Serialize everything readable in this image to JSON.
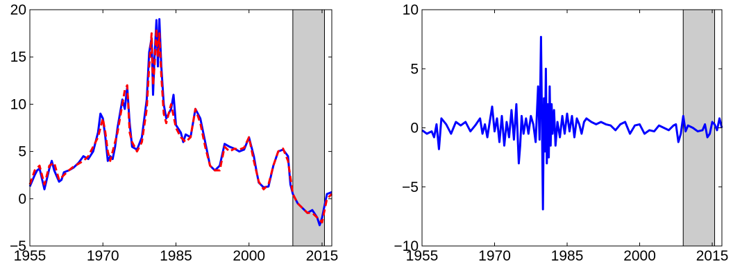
{
  "chart_data": [
    {
      "type": "line",
      "title": "",
      "xlabel": "",
      "ylabel": "",
      "xlim": [
        1955,
        2017
      ],
      "ylim": [
        -5,
        20
      ],
      "x_ticks": [
        "1955",
        "1970",
        "1985",
        "2000",
        "2015"
      ],
      "y_ticks": [
        "−5",
        "0",
        "5",
        "10",
        "15",
        "20"
      ],
      "grid": false,
      "shaded_region": {
        "x_start": 2009,
        "x_end": 2015.5,
        "color": "#cccccc"
      },
      "colors": {
        "series_1": "#0000ff",
        "series_2": "#ff0000"
      },
      "series": [
        {
          "style": "solid",
          "x": [
            1955,
            1956,
            1956.5,
            1957,
            1958,
            1959,
            1959.5,
            1960,
            1961,
            1961.5,
            1962,
            1963,
            1964,
            1965,
            1966,
            1967,
            1968,
            1969,
            1969.5,
            1970,
            1970.5,
            1971,
            1971.5,
            1972,
            1972.5,
            1973,
            1974,
            1974.5,
            1975,
            1975.5,
            1976,
            1977,
            1978,
            1979,
            1979.5,
            1980,
            1980.3,
            1980.6,
            1981,
            1981.3,
            1981.6,
            1982,
            1982.5,
            1983,
            1984,
            1984.5,
            1985,
            1986,
            1986.5,
            1987,
            1988,
            1989,
            1990,
            1991,
            1992,
            1993,
            1994,
            1995,
            1996,
            1997,
            1998,
            1999,
            2000,
            2001,
            2001.5,
            2002,
            2003,
            2004,
            2005,
            2006,
            2007,
            2008,
            2008.5,
            2009,
            2010,
            2011,
            2012,
            2013,
            2014,
            2014.5,
            2015,
            2016,
            2017
          ],
          "y": [
            1.3,
            2.5,
            3.0,
            3.2,
            1.0,
            3.2,
            4.0,
            3.0,
            1.8,
            2.0,
            2.8,
            3.0,
            3.3,
            3.8,
            4.5,
            4.2,
            5.0,
            7.0,
            9.0,
            8.5,
            6.5,
            4.0,
            4.5,
            4.2,
            5.5,
            7.5,
            10.5,
            9.5,
            11.8,
            8.0,
            5.5,
            5.2,
            6.5,
            10.5,
            15.5,
            17.0,
            11.0,
            15.0,
            18.9,
            14.0,
            19.0,
            14.0,
            10.0,
            8.5,
            9.5,
            11.0,
            7.8,
            7.0,
            6.0,
            6.8,
            6.5,
            9.5,
            8.5,
            6.0,
            3.5,
            3.0,
            3.5,
            5.8,
            5.5,
            5.3,
            5.0,
            5.2,
            6.5,
            4.5,
            3.0,
            1.7,
            1.2,
            1.3,
            3.5,
            5.0,
            5.2,
            4.5,
            1.5,
            0.5,
            -0.5,
            -1.0,
            -1.5,
            -1.2,
            -2.0,
            -2.8,
            -2.0,
            0.5,
            0.7
          ]
        },
        {
          "style": "dashed",
          "x": [
            1955,
            1956,
            1957,
            1958,
            1959,
            1960,
            1961,
            1962,
            1963,
            1964,
            1965,
            1966,
            1967,
            1968,
            1969,
            1970,
            1970.5,
            1971,
            1971.5,
            1972,
            1973,
            1974,
            1974.5,
            1975,
            1975.5,
            1976,
            1977,
            1978,
            1979,
            1979.5,
            1980,
            1980.3,
            1980.6,
            1981,
            1981.3,
            1981.6,
            1982,
            1982.5,
            1983,
            1984,
            1985,
            1986,
            1987,
            1988,
            1989,
            1990,
            1991,
            1992,
            1993,
            1994,
            1995,
            1996,
            1997,
            1998,
            1999,
            2000,
            2001,
            2002,
            2003,
            2004,
            2005,
            2006,
            2007,
            2008,
            2009,
            2010,
            2011,
            2012,
            2013,
            2014,
            2015,
            2016,
            2017
          ],
          "y": [
            1.5,
            3.0,
            3.5,
            1.5,
            3.5,
            3.8,
            2.0,
            2.5,
            3.0,
            3.4,
            3.7,
            4.0,
            4.5,
            5.5,
            6.5,
            8.5,
            7.0,
            5.0,
            4.0,
            5.0,
            7.0,
            10.0,
            11.5,
            12.0,
            7.0,
            6.0,
            5.0,
            6.0,
            9.5,
            14.0,
            17.5,
            12.0,
            14.0,
            18.0,
            15.0,
            17.5,
            13.0,
            9.0,
            8.0,
            10.0,
            7.5,
            6.5,
            6.0,
            6.5,
            9.5,
            8.0,
            5.5,
            3.5,
            3.0,
            3.0,
            5.5,
            5.0,
            5.3,
            5.2,
            5.4,
            6.5,
            4.0,
            1.8,
            1.0,
            1.5,
            3.5,
            5.0,
            5.3,
            4.0,
            0.5,
            -0.5,
            -1.0,
            -1.5,
            -1.5,
            -2.0,
            -2.5,
            0.0,
            0.5
          ]
        }
      ]
    },
    {
      "type": "line",
      "title": "",
      "xlabel": "",
      "ylabel": "",
      "xlim": [
        1955,
        2017
      ],
      "ylim": [
        -10,
        10
      ],
      "x_ticks": [
        "1955",
        "1970",
        "1985",
        "2000",
        "2015"
      ],
      "y_ticks": [
        "−10",
        "−5",
        "0",
        "5",
        "10"
      ],
      "grid": false,
      "shaded_region": {
        "x_start": 2009,
        "x_end": 2015.5,
        "color": "#cccccc"
      },
      "colors": {
        "series_1": "#0000ff"
      },
      "series": [
        {
          "style": "solid",
          "x": [
            1955,
            1956,
            1957,
            1957.5,
            1958,
            1958.5,
            1959,
            1960,
            1961,
            1962,
            1963,
            1964,
            1965,
            1966,
            1967,
            1967.5,
            1968,
            1968.5,
            1969,
            1969.5,
            1970,
            1970.5,
            1971,
            1971.5,
            1972,
            1972.5,
            1973,
            1973.5,
            1974,
            1974.5,
            1975,
            1975.3,
            1975.6,
            1976,
            1976.5,
            1977,
            1977.5,
            1978,
            1978.5,
            1979,
            1979.3,
            1979.6,
            1980,
            1980.2,
            1980.4,
            1980.6,
            1980.8,
            1981,
            1981.2,
            1981.4,
            1981.6,
            1981.8,
            1982,
            1982.3,
            1982.6,
            1983,
            1983.5,
            1984,
            1984.5,
            1985,
            1985.5,
            1986,
            1986.5,
            1987,
            1987.5,
            1988,
            1988.5,
            1989,
            1990,
            1991,
            1992,
            1993,
            1994,
            1995,
            1996,
            1997,
            1998,
            1999,
            2000,
            2001,
            2002,
            2003,
            2004,
            2005,
            2006,
            2007,
            2007.5,
            2008,
            2008.5,
            2009,
            2009.5,
            2010,
            2011,
            2012,
            2013,
            2013.5,
            2014,
            2014.5,
            2015,
            2015.5,
            2016,
            2016.5,
            2017
          ],
          "y": [
            -0.2,
            -0.5,
            -0.3,
            -0.8,
            0.3,
            -1.8,
            0.8,
            0.3,
            -0.5,
            0.5,
            0.2,
            0.5,
            -0.3,
            0.2,
            0.8,
            -0.5,
            0.3,
            -0.8,
            0.5,
            1.8,
            -0.3,
            0.8,
            -1.2,
            1.0,
            -1.5,
            0.5,
            -0.8,
            1.5,
            -1.0,
            2.0,
            -3.0,
            -1.5,
            1.0,
            -0.5,
            0.8,
            -0.5,
            1.0,
            0.3,
            -1.2,
            3.5,
            -1.0,
            7.7,
            -6.9,
            2.5,
            -2.0,
            5.0,
            -3.0,
            2.0,
            -2.5,
            3.5,
            -1.5,
            2.0,
            -0.5,
            1.5,
            -1.5,
            0.5,
            -0.8,
            1.0,
            -0.5,
            1.2,
            -0.3,
            1.0,
            -0.8,
            0.8,
            0.3,
            -0.5,
            0.5,
            0.8,
            0.5,
            0.3,
            0.5,
            0.3,
            0.2,
            -0.2,
            0.3,
            0.5,
            -0.5,
            0.2,
            0.3,
            -0.5,
            -0.2,
            -0.3,
            0.2,
            0.0,
            -0.2,
            0.2,
            0.3,
            -1.2,
            -0.5,
            1.0,
            -0.3,
            0.2,
            0.0,
            -0.3,
            -0.2,
            0.3,
            -0.8,
            -0.5,
            0.5,
            0.3,
            -0.2,
            0.8,
            0.0
          ]
        }
      ]
    }
  ]
}
